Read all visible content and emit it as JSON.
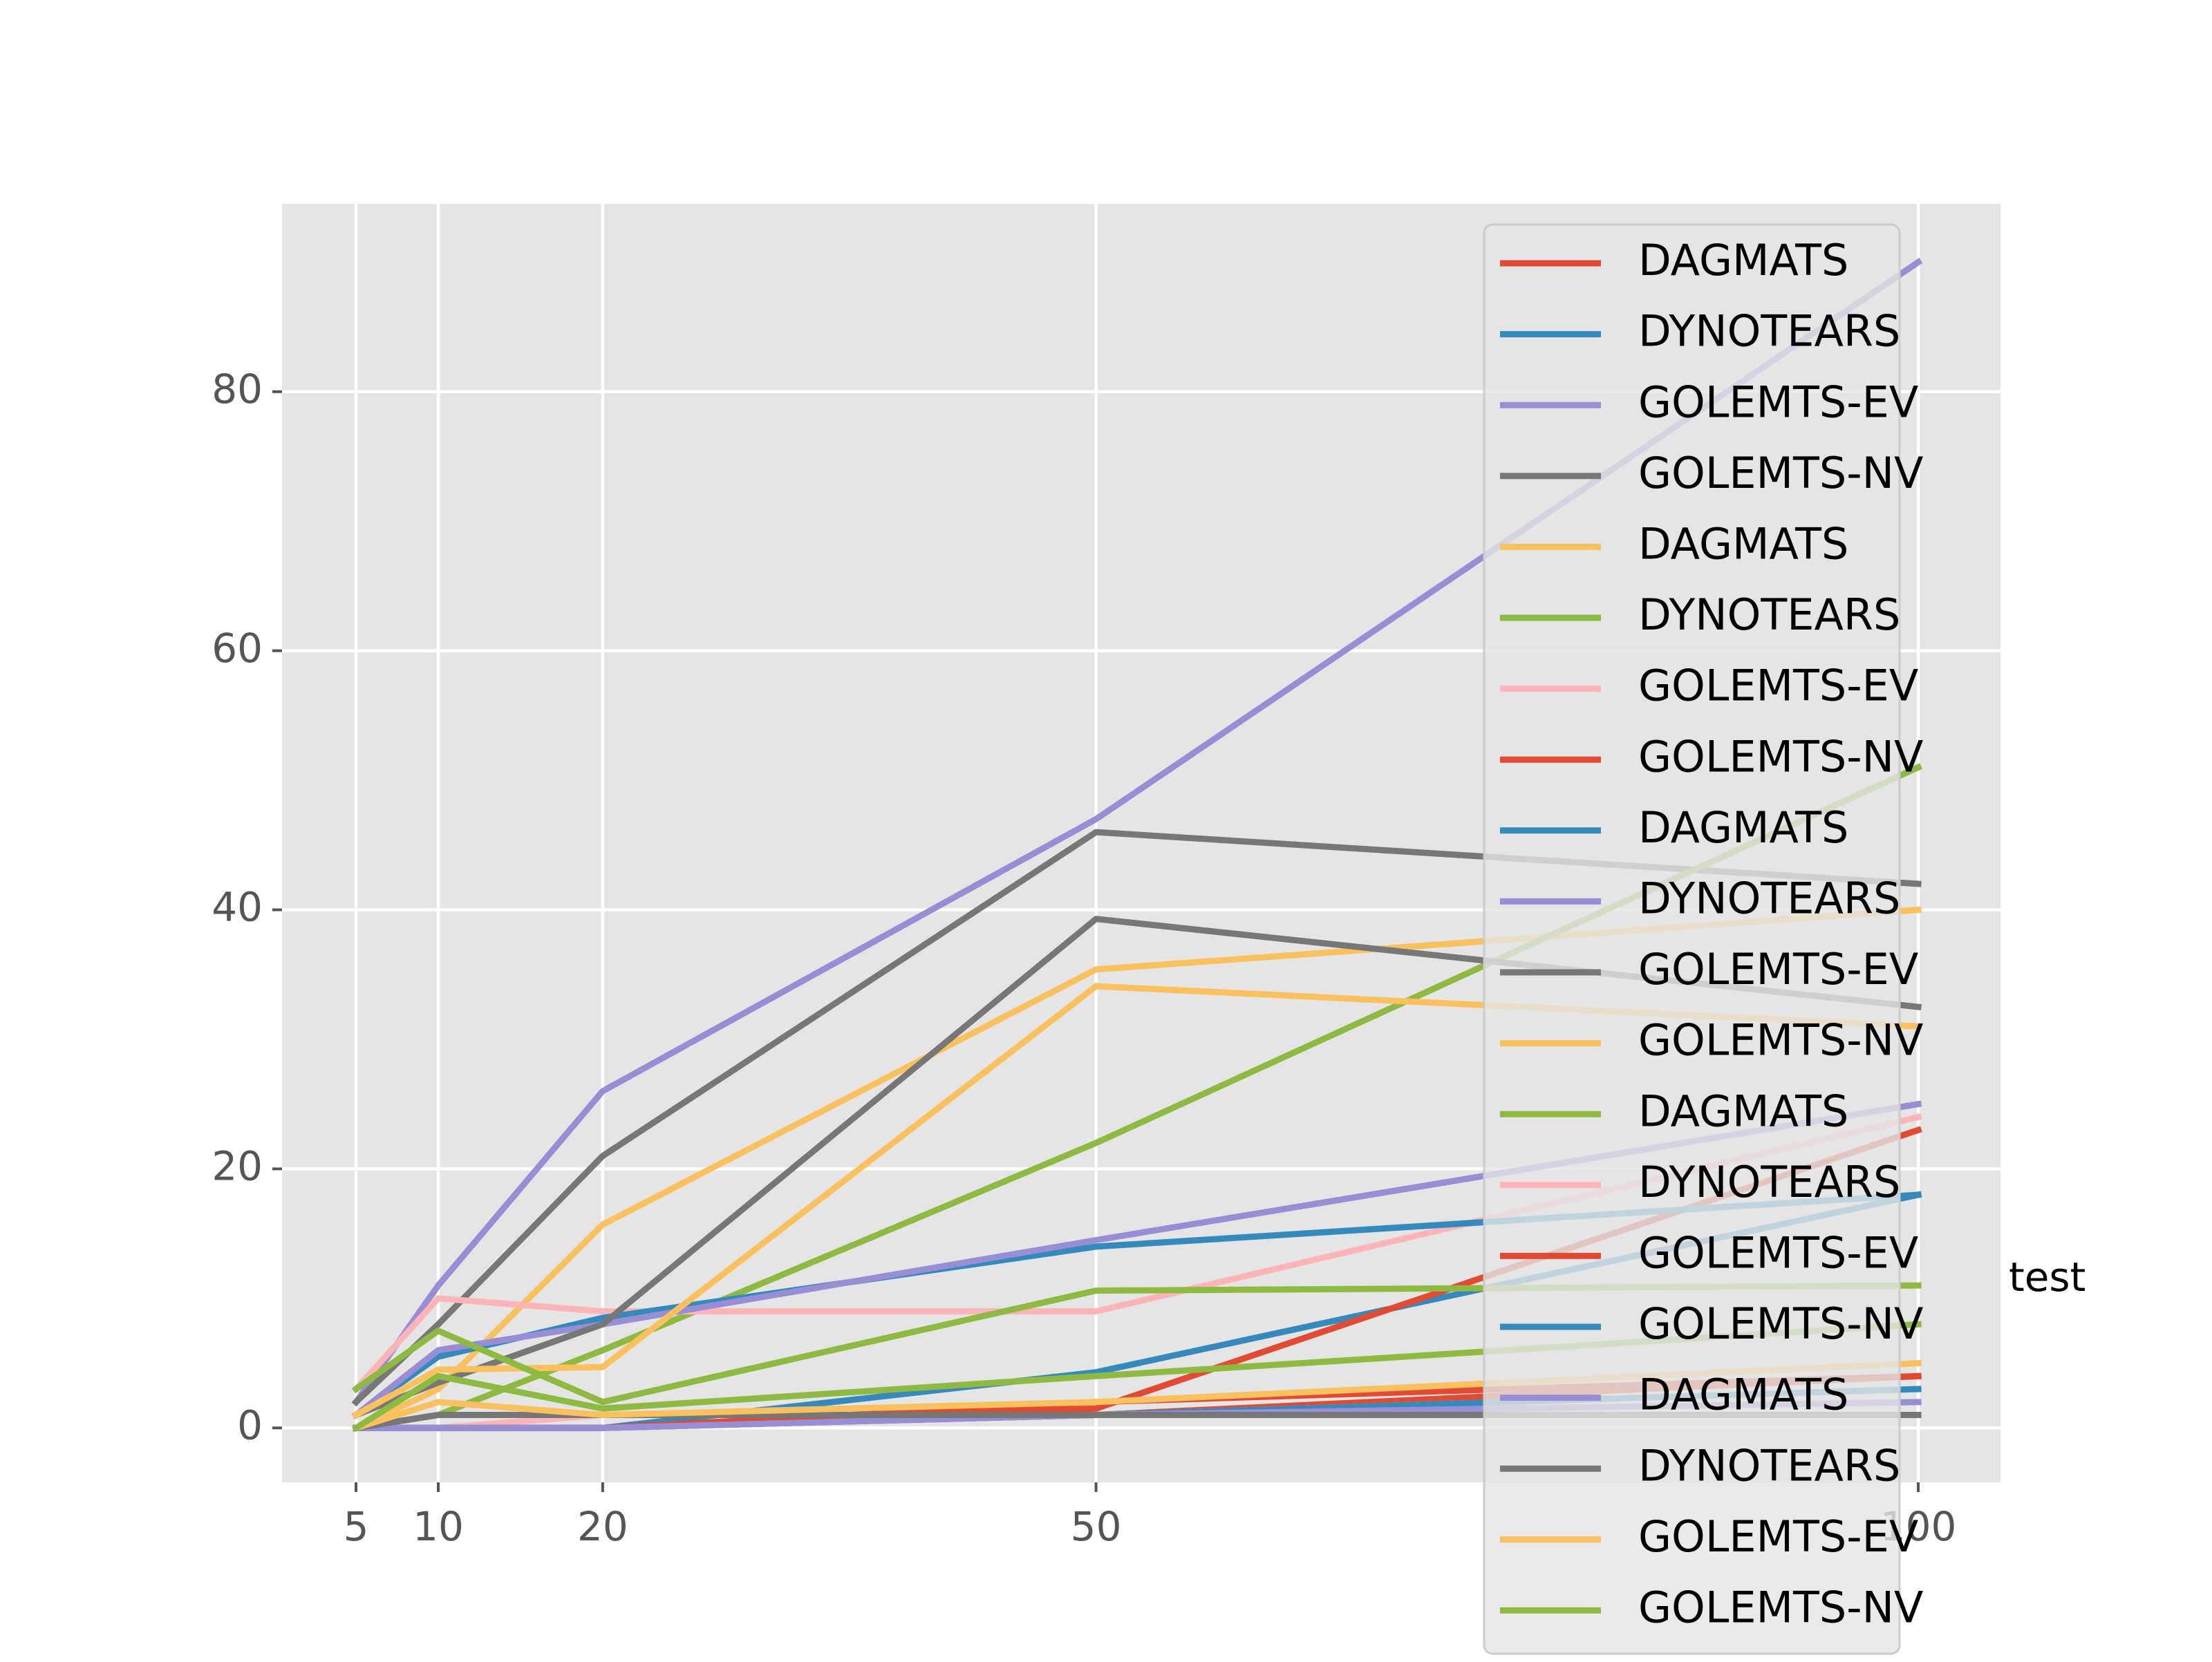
{
  "chart_data": {
    "type": "line",
    "x": [
      5,
      10,
      20,
      50,
      100
    ],
    "xticks": [
      "5",
      "10",
      "20",
      "50",
      "100"
    ],
    "yticks": [
      "0",
      "20",
      "40",
      "60",
      "80"
    ],
    "xlim": [
      0.5,
      105
    ],
    "ylim": [
      -4.2,
      94.5
    ],
    "grid": true,
    "legend_placement": "right",
    "annotation": "test",
    "series": [
      {
        "name": "DAGMATS",
        "color": "#E24A33",
        "values": [
          0.0,
          0.0,
          0.0,
          1.0,
          4.0
        ]
      },
      {
        "name": "DYNOTEARS",
        "color": "#348ABD",
        "values": [
          0.0,
          0.0,
          0.0,
          4.3,
          18.0
        ]
      },
      {
        "name": "GOLEMTS-EV",
        "color": "#988ED5",
        "values": [
          2.0,
          11.0,
          26.0,
          47.0,
          90.0
        ]
      },
      {
        "name": "GOLEMTS-NV",
        "color": "#777777",
        "values": [
          2.0,
          8.0,
          21.0,
          46.0,
          42.0
        ]
      },
      {
        "name": "DAGMATS",
        "color": "#FBC15E",
        "values": [
          0.0,
          3.0,
          15.7,
          35.4,
          40.0
        ]
      },
      {
        "name": "DYNOTEARS",
        "color": "#8EBA42",
        "values": [
          0.0,
          1.0,
          6.0,
          22.0,
          51.0
        ]
      },
      {
        "name": "GOLEMTS-EV",
        "color": "#FFB5B8",
        "values": [
          3.0,
          10.0,
          9.0,
          9.0,
          24.0
        ]
      },
      {
        "name": "GOLEMTS-NV",
        "color": "#E24A33",
        "values": [
          0.0,
          0.0,
          0.0,
          1.5,
          23.0
        ]
      },
      {
        "name": "DAGMATS",
        "color": "#348ABD",
        "values": [
          1.0,
          5.5,
          8.5,
          14.0,
          18.0
        ]
      },
      {
        "name": "DYNOTEARS",
        "color": "#988ED5",
        "values": [
          1.0,
          6.0,
          8.0,
          14.5,
          25.0
        ]
      },
      {
        "name": "GOLEMTS-EV",
        "color": "#777777",
        "values": [
          1.0,
          3.5,
          8.0,
          39.3,
          32.5
        ]
      },
      {
        "name": "GOLEMTS-NV",
        "color": "#FBC15E",
        "values": [
          1.0,
          4.5,
          4.7,
          34.1,
          31.0
        ]
      },
      {
        "name": "DAGMATS",
        "color": "#8EBA42",
        "values": [
          3.0,
          7.5,
          2.0,
          10.6,
          11.0
        ]
      },
      {
        "name": "DYNOTEARS",
        "color": "#FFB5B8",
        "values": [
          0.0,
          0.0,
          1.0,
          1.0,
          3.0
        ]
      },
      {
        "name": "GOLEMTS-EV",
        "color": "#E24A33",
        "values": [
          0.0,
          0.0,
          0.0,
          2.0,
          4.0
        ]
      },
      {
        "name": "GOLEMTS-NV",
        "color": "#348ABD",
        "values": [
          0.0,
          0.0,
          0.0,
          1.0,
          3.0
        ]
      },
      {
        "name": "DAGMATS",
        "color": "#988ED5",
        "values": [
          0.0,
          0.0,
          0.0,
          1.0,
          2.0
        ]
      },
      {
        "name": "DYNOTEARS",
        "color": "#777777",
        "values": [
          0.0,
          1.0,
          1.0,
          1.0,
          1.0
        ]
      },
      {
        "name": "GOLEMTS-EV",
        "color": "#FBC15E",
        "values": [
          0.0,
          2.0,
          1.0,
          2.0,
          5.0
        ]
      },
      {
        "name": "GOLEMTS-NV",
        "color": "#8EBA42",
        "values": [
          0.0,
          4.0,
          1.5,
          4.0,
          8.0
        ]
      }
    ]
  }
}
